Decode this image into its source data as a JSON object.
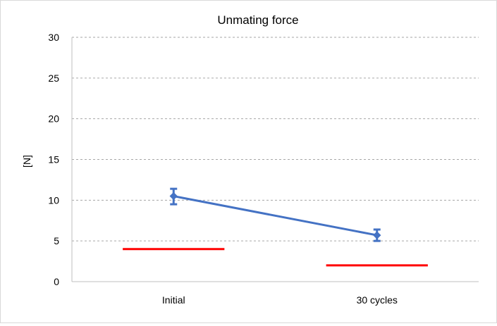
{
  "chart_data": {
    "type": "line",
    "title": "Unmating force",
    "xlabel": "",
    "ylabel": "[N]",
    "categories": [
      "Initial",
      "30 cycles"
    ],
    "ylim": [
      0,
      30
    ],
    "yticks": [
      0,
      5,
      10,
      15,
      20,
      25,
      30
    ],
    "grid": "horizontal-dashed",
    "series": [
      {
        "values": [
          10.5,
          5.7
        ],
        "error_low": [
          9.5,
          5.0
        ],
        "error_high": [
          11.4,
          6.4
        ],
        "color": "#4472c4",
        "marker": "diamond"
      }
    ],
    "reference_lines": [
      {
        "category": "Initial",
        "value": 4.0,
        "color": "#ff0000"
      },
      {
        "category": "30 cycles",
        "value": 2.0,
        "color": "#ff0000"
      }
    ]
  }
}
